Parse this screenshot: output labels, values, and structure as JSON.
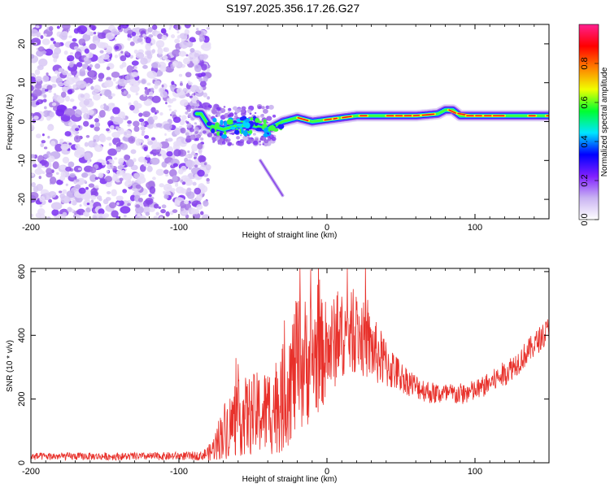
{
  "title": "S197.2025.356.17.26.G27",
  "chart_data": [
    {
      "type": "heatmap",
      "xlabel": "Height of straight line (km)",
      "ylabel": "Frequency (Hz)",
      "xlim": [
        -200,
        150
      ],
      "ylim": [
        -25,
        25
      ],
      "xticks": [
        -200,
        -100,
        0,
        100
      ],
      "yticks": [
        -20,
        -10,
        0,
        10,
        20
      ],
      "noise_region": [
        -200,
        -80
      ],
      "ridge": {
        "x": [
          -85,
          -80,
          -70,
          -60,
          -50,
          -40,
          -30,
          -20,
          -10,
          0,
          10,
          20,
          30,
          40,
          60,
          75,
          80,
          85,
          90,
          100,
          120,
          150
        ],
        "freq": [
          2,
          -1,
          -2,
          -1,
          -1,
          -2,
          0,
          1,
          0,
          0.5,
          1,
          1.5,
          1.5,
          1.5,
          1.5,
          2,
          3,
          3,
          1.5,
          1.5,
          1.5,
          1.5
        ]
      },
      "branch": {
        "x": [
          -45,
          -40,
          -35,
          -30
        ],
        "freq": [
          -10,
          -13,
          -16,
          -19
        ]
      },
      "colorbar": {
        "label": "Normalized spectral amplitude",
        "ticks": [
          "0.0",
          "0.2",
          "0.4",
          "0.6",
          "0.8"
        ],
        "colors": [
          "#ffffff",
          "#c9b3f2",
          "#8020ff",
          "#0000ff",
          "#00e6ff",
          "#00ff30",
          "#f0ff00",
          "#ff8000",
          "#ff0000",
          "#ff2090"
        ]
      }
    },
    {
      "type": "line",
      "xlabel": "Height of straight line (km)",
      "ylabel": "SNR (10 * v/v)",
      "xlim": [
        -200,
        150
      ],
      "ylim": [
        0,
        610
      ],
      "xticks": [
        -200,
        -100,
        0,
        100
      ],
      "yticks": [
        0,
        200,
        400,
        600
      ],
      "color": "#e8302a",
      "envelope": {
        "x": [
          -200,
          -160,
          -120,
          -85,
          -78,
          -70,
          -60,
          -50,
          -40,
          -30,
          -25,
          -20,
          -10,
          0,
          10,
          20,
          30,
          40,
          50,
          60,
          70,
          80,
          90,
          100,
          110,
          120,
          130,
          140,
          150
        ],
        "mean": [
          20,
          20,
          20,
          22,
          35,
          100,
          140,
          150,
          160,
          200,
          260,
          300,
          330,
          350,
          400,
          410,
          360,
          310,
          270,
          240,
          220,
          215,
          215,
          225,
          250,
          280,
          320,
          370,
          420
        ],
        "spread": [
          12,
          12,
          12,
          14,
          30,
          90,
          120,
          130,
          140,
          170,
          200,
          220,
          200,
          160,
          130,
          130,
          110,
          80,
          50,
          40,
          35,
          35,
          35,
          35,
          35,
          40,
          40,
          40,
          40
        ]
      }
    }
  ]
}
